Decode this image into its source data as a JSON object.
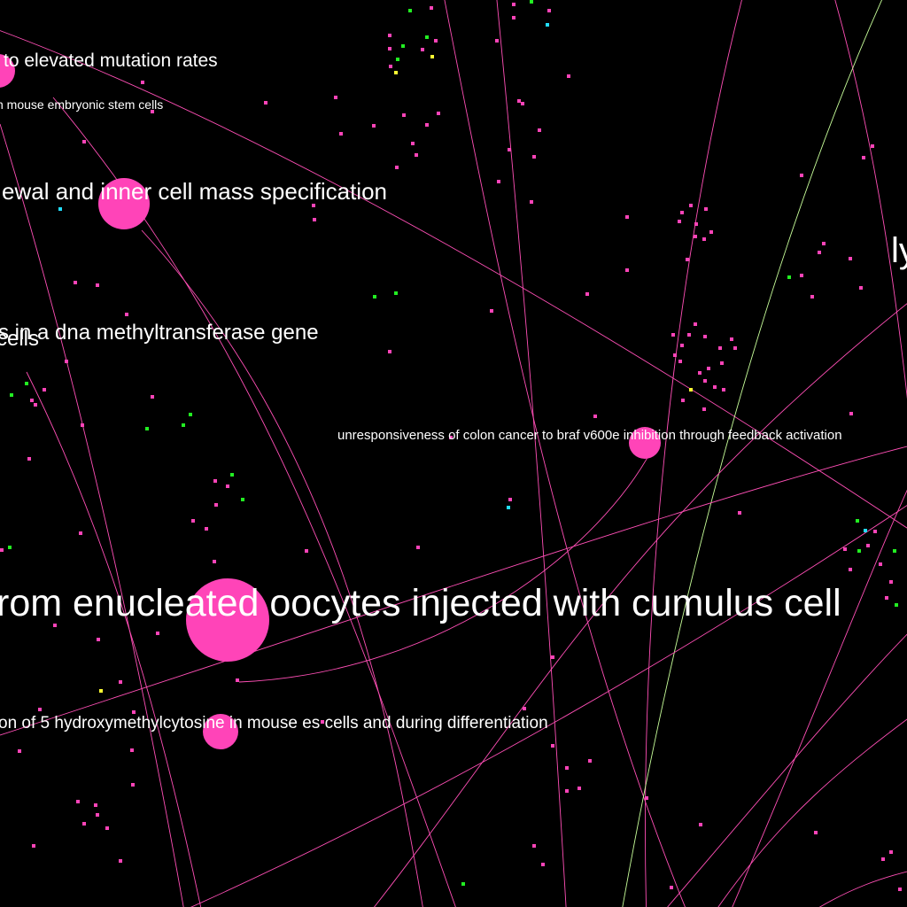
{
  "colors": {
    "background": "#000000",
    "edge": "#ff4fb6",
    "edge_alt": "#c8ff9a",
    "node_primary": "#ff44b8",
    "node_green": "#22ee22",
    "node_yellow": "#ffff33",
    "node_cyan": "#22ddff",
    "label": "#ffffff"
  },
  "labels": {
    "mutation_rates": "to elevated mutation rates",
    "embryonic_stem": "n mouse embryonic stem cells",
    "inner_cell_mass": "ewal and inner cell mass specification",
    "partial_right": "ly",
    "dna_methyltransferase": "s in a dna methyltransferase gene",
    "cells": "cells",
    "colon_cancer": "unresponsiveness of colon cancer to braf v600e inhibition through feedback activation",
    "enucleated_oocytes": "rom enucleated oocytes injected with cumulus cell",
    "hydroxymethylcytosine": "on of 5 hydroxymethylcytosine in mouse es cells and during differentiation"
  }
}
